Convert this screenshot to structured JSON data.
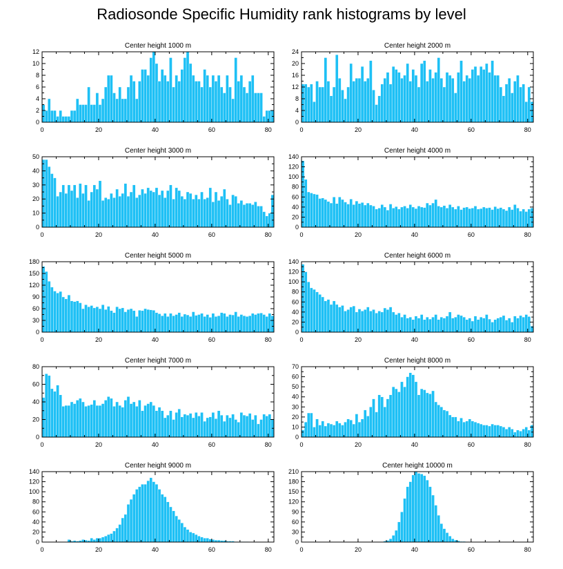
{
  "title": "Radiosonde Specific Humidity rank histograms by level",
  "colors": {
    "bar": "#1ec0f5",
    "bar_edge": "#ffffff",
    "axis": "#000000"
  },
  "chart_data": [
    {
      "type": "bar",
      "title": "Center height 1000 m",
      "xlim": [
        0,
        82
      ],
      "ylim": [
        0,
        12
      ],
      "xticks": [
        0,
        20,
        40,
        60,
        80
      ],
      "yticks": [
        0,
        2,
        4,
        6,
        8,
        10,
        12
      ],
      "values": [
        3,
        2,
        4,
        2,
        2,
        1,
        2,
        1,
        1,
        1,
        2,
        2,
        4,
        3,
        3,
        3,
        6,
        3,
        3,
        5,
        3,
        4,
        6,
        8,
        8,
        5,
        4,
        6,
        4,
        4,
        6,
        8,
        7,
        4,
        7,
        9,
        9,
        8,
        11,
        12,
        10,
        7,
        9,
        8,
        7,
        11,
        6,
        8,
        7,
        9,
        11,
        12,
        10,
        8,
        7,
        7,
        6,
        9,
        8,
        6,
        8,
        7,
        8,
        6,
        5,
        8,
        6,
        4,
        11,
        7,
        8,
        6,
        5,
        7,
        8,
        5,
        5,
        5,
        1,
        2,
        2,
        2
      ]
    },
    {
      "type": "bar",
      "title": "Center height 2000 m",
      "xlim": [
        0,
        82
      ],
      "ylim": [
        0,
        24
      ],
      "xticks": [
        0,
        20,
        40,
        60,
        80
      ],
      "yticks": [
        0,
        4,
        8,
        12,
        16,
        20,
        24
      ],
      "values": [
        13,
        13,
        12,
        13,
        7,
        14,
        12,
        12,
        22,
        14,
        9,
        12,
        23,
        15,
        11,
        8,
        12,
        20,
        14,
        15,
        15,
        19,
        14,
        15,
        21,
        11,
        6,
        9,
        13,
        15,
        17,
        13,
        19,
        18,
        17,
        15,
        16,
        20,
        14,
        18,
        16,
        12,
        20,
        21,
        14,
        18,
        15,
        17,
        22,
        15,
        12,
        17,
        16,
        15,
        10,
        17,
        21,
        14,
        16,
        15,
        18,
        19,
        16,
        19,
        18,
        20,
        17,
        21,
        16,
        16,
        12,
        9,
        13,
        15,
        10,
        14,
        16,
        12,
        13,
        7,
        12,
        7
      ]
    },
    {
      "type": "bar",
      "title": "Center height 3000 m",
      "xlim": [
        0,
        82
      ],
      "ylim": [
        0,
        50
      ],
      "xticks": [
        0,
        20,
        40,
        60,
        80
      ],
      "yticks": [
        0,
        10,
        20,
        30,
        40,
        50
      ],
      "values": [
        48,
        48,
        43,
        38,
        35,
        22,
        25,
        30,
        24,
        30,
        26,
        30,
        21,
        31,
        24,
        30,
        19,
        25,
        30,
        27,
        33,
        19,
        21,
        20,
        24,
        21,
        27,
        22,
        24,
        31,
        22,
        25,
        30,
        21,
        23,
        27,
        24,
        28,
        26,
        25,
        28,
        23,
        26,
        21,
        26,
        30,
        20,
        28,
        26,
        22,
        20,
        25,
        24,
        20,
        23,
        20,
        25,
        20,
        21,
        28,
        18,
        25,
        19,
        22,
        27,
        20,
        16,
        23,
        22,
        17,
        19,
        16,
        17,
        17,
        16,
        18,
        15,
        15,
        11,
        8,
        10,
        23
      ]
    },
    {
      "type": "bar",
      "title": "Center height 4000 m",
      "xlim": [
        0,
        82
      ],
      "ylim": [
        0,
        140
      ],
      "xticks": [
        0,
        20,
        40,
        60,
        80
      ],
      "yticks": [
        0,
        20,
        40,
        60,
        80,
        100,
        120,
        140
      ],
      "values": [
        132,
        95,
        70,
        68,
        66,
        65,
        57,
        58,
        55,
        51,
        48,
        60,
        47,
        60,
        55,
        50,
        46,
        56,
        45,
        52,
        47,
        49,
        44,
        48,
        44,
        42,
        36,
        38,
        45,
        40,
        34,
        46,
        38,
        41,
        36,
        40,
        42,
        38,
        45,
        40,
        37,
        42,
        40,
        39,
        48,
        44,
        48,
        55,
        42,
        40,
        43,
        38,
        45,
        40,
        36,
        42,
        35,
        39,
        40,
        37,
        38,
        42,
        36,
        37,
        40,
        38,
        39,
        35,
        41,
        37,
        39,
        36,
        33,
        40,
        35,
        45,
        38,
        32,
        36,
        31,
        36,
        38
      ]
    },
    {
      "type": "bar",
      "title": "Center height 5000 m",
      "xlim": [
        0,
        82
      ],
      "ylim": [
        0,
        180
      ],
      "xticks": [
        0,
        20,
        40,
        60,
        80
      ],
      "yticks": [
        0,
        30,
        60,
        90,
        120,
        150,
        180
      ],
      "values": [
        168,
        155,
        130,
        115,
        105,
        100,
        104,
        90,
        85,
        95,
        80,
        78,
        80,
        75,
        60,
        70,
        65,
        68,
        62,
        65,
        60,
        70,
        58,
        66,
        55,
        50,
        65,
        60,
        62,
        52,
        58,
        60,
        55,
        40,
        56,
        55,
        60,
        58,
        57,
        56,
        50,
        47,
        42,
        48,
        40,
        48,
        42,
        45,
        50,
        40,
        46,
        44,
        40,
        52,
        43,
        45,
        48,
        40,
        45,
        38,
        48,
        40,
        42,
        50,
        48,
        40,
        45,
        44,
        52,
        40,
        45,
        42,
        40,
        42,
        48,
        45,
        48,
        49,
        45,
        40,
        48,
        42
      ]
    },
    {
      "type": "bar",
      "title": "Center height 6000 m",
      "xlim": [
        0,
        82
      ],
      "ylim": [
        0,
        140
      ],
      "xticks": [
        0,
        20,
        40,
        60,
        80
      ],
      "yticks": [
        0,
        20,
        40,
        60,
        80,
        100,
        120,
        140
      ],
      "values": [
        135,
        120,
        100,
        88,
        85,
        80,
        75,
        70,
        62,
        65,
        55,
        62,
        55,
        50,
        53,
        42,
        45,
        50,
        52,
        40,
        46,
        42,
        45,
        50,
        42,
        45,
        38,
        42,
        40,
        48,
        45,
        50,
        40,
        35,
        38,
        30,
        35,
        28,
        30,
        25,
        32,
        28,
        35,
        25,
        30,
        26,
        30,
        35,
        25,
        30,
        28,
        32,
        40,
        28,
        30,
        35,
        33,
        30,
        25,
        28,
        22,
        32,
        25,
        30,
        28,
        35,
        26,
        20,
        25,
        28,
        30,
        33,
        24,
        28,
        20,
        32,
        28,
        33,
        30,
        35,
        31,
        12
      ]
    },
    {
      "type": "bar",
      "title": "Center height 7000 m",
      "xlim": [
        0,
        82
      ],
      "ylim": [
        0,
        80
      ],
      "xticks": [
        0,
        20,
        40,
        60,
        80
      ],
      "yticks": [
        0,
        20,
        40,
        60,
        80
      ],
      "values": [
        45,
        72,
        70,
        55,
        52,
        59,
        48,
        35,
        36,
        36,
        40,
        38,
        42,
        44,
        40,
        35,
        36,
        37,
        42,
        36,
        36,
        38,
        42,
        46,
        44,
        35,
        40,
        36,
        34,
        42,
        46,
        38,
        40,
        35,
        42,
        30,
        36,
        38,
        40,
        36,
        30,
        34,
        30,
        22,
        25,
        30,
        20,
        28,
        32,
        23,
        26,
        25,
        27,
        22,
        28,
        24,
        28,
        18,
        22,
        23,
        28,
        21,
        30,
        25,
        18,
        25,
        22,
        26,
        20,
        17,
        28,
        25,
        24,
        27,
        20,
        25,
        15,
        20,
        26,
        24,
        26,
        20
      ]
    },
    {
      "type": "bar",
      "title": "Center height 8000 m",
      "xlim": [
        0,
        82
      ],
      "ylim": [
        0,
        70
      ],
      "xticks": [
        0,
        20,
        40,
        60,
        80
      ],
      "yticks": [
        0,
        10,
        20,
        30,
        40,
        50,
        60,
        70
      ],
      "values": [
        7,
        15,
        24,
        24,
        10,
        18,
        12,
        16,
        11,
        14,
        13,
        12,
        16,
        14,
        12,
        15,
        18,
        17,
        13,
        23,
        15,
        18,
        27,
        21,
        30,
        38,
        25,
        42,
        40,
        30,
        38,
        42,
        50,
        48,
        45,
        55,
        50,
        60,
        64,
        62,
        55,
        42,
        48,
        47,
        44,
        43,
        46,
        35,
        32,
        30,
        27,
        26,
        22,
        20,
        20,
        16,
        19,
        15,
        16,
        18,
        16,
        15,
        14,
        13,
        12,
        12,
        11,
        13,
        12,
        12,
        11,
        10,
        8,
        10,
        8,
        5,
        7,
        6,
        8,
        10,
        7,
        12
      ]
    },
    {
      "type": "bar",
      "title": "Center height 9000 m",
      "xlim": [
        0,
        82
      ],
      "ylim": [
        0,
        140
      ],
      "xticks": [
        0,
        20,
        40,
        60,
        80
      ],
      "yticks": [
        0,
        20,
        40,
        60,
        80,
        100,
        120,
        140
      ],
      "values": [
        0,
        0,
        0,
        0,
        0,
        0,
        0,
        0,
        0,
        5,
        2,
        3,
        2,
        3,
        5,
        4,
        3,
        8,
        5,
        8,
        8,
        10,
        12,
        15,
        17,
        22,
        28,
        35,
        48,
        55,
        75,
        85,
        95,
        105,
        110,
        115,
        115,
        122,
        128,
        120,
        115,
        105,
        95,
        90,
        80,
        70,
        62,
        52,
        45,
        38,
        30,
        25,
        20,
        18,
        15,
        12,
        10,
        8,
        8,
        6,
        5,
        4,
        4,
        3,
        3,
        2,
        2,
        2,
        1,
        1,
        1,
        1,
        1,
        0,
        0,
        0,
        0,
        0,
        0,
        0,
        0,
        0
      ]
    },
    {
      "type": "bar",
      "title": "Center height 10000 m",
      "xlim": [
        0,
        82
      ],
      "ylim": [
        0,
        210
      ],
      "xticks": [
        0,
        20,
        40,
        60,
        80
      ],
      "yticks": [
        0,
        30,
        60,
        90,
        120,
        150,
        180,
        210
      ],
      "values": [
        0,
        0,
        0,
        0,
        0,
        0,
        0,
        0,
        0,
        0,
        0,
        0,
        0,
        0,
        0,
        0,
        0,
        0,
        0,
        0,
        0,
        0,
        0,
        0,
        0,
        0,
        0,
        0,
        1,
        3,
        5,
        10,
        20,
        35,
        60,
        90,
        130,
        165,
        180,
        200,
        210,
        205,
        203,
        198,
        185,
        165,
        140,
        110,
        80,
        55,
        40,
        28,
        18,
        10,
        6,
        4,
        2,
        2,
        1,
        1,
        1,
        0,
        0,
        0,
        0,
        0,
        0,
        0,
        0,
        0,
        0,
        0,
        0,
        0,
        0,
        0,
        0,
        0,
        0,
        0,
        0,
        0
      ]
    }
  ]
}
